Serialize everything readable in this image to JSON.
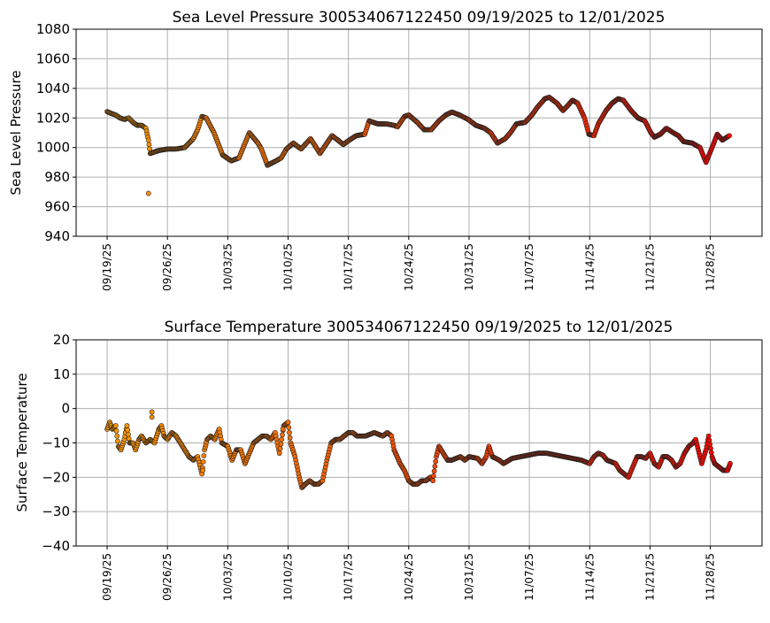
{
  "chart_data": [
    {
      "type": "scatter",
      "title": "Sea Level Pressure 300534067122450  09/19/2025 to 12/01/2025",
      "xlabel": "",
      "ylabel": "Sea Level Pressure",
      "x_unit": "days since 09/19/25",
      "xlim": [
        -3.6,
        76
      ],
      "ylim": [
        940,
        1080
      ],
      "yticks": [
        940,
        960,
        980,
        1000,
        1020,
        1040,
        1060,
        1080
      ],
      "xticks": [
        0,
        7,
        14,
        21,
        28,
        35,
        42,
        49,
        56,
        63,
        70
      ],
      "xtick_labels": [
        "09/19/25",
        "09/26/25",
        "10/03/25",
        "10/10/25",
        "10/17/25",
        "10/24/25",
        "10/31/25",
        "11/07/25",
        "11/14/25",
        "11/21/25",
        "11/28/25"
      ],
      "grid": true,
      "color_start": "#ff9a00",
      "color_end": "#ff0000",
      "outliers": [
        [
          4.8,
          969
        ]
      ],
      "points": [
        [
          0,
          1024.3
        ],
        [
          0.5,
          1023
        ],
        [
          1,
          1022
        ],
        [
          1.5,
          1020
        ],
        [
          2,
          1019
        ],
        [
          2.5,
          1020
        ],
        [
          3,
          1017
        ],
        [
          3.5,
          1015
        ],
        [
          4,
          1015
        ],
        [
          4.5,
          1013
        ],
        [
          4.8,
          1005
        ],
        [
          5,
          996
        ],
        [
          6,
          998
        ],
        [
          7,
          999
        ],
        [
          8,
          999
        ],
        [
          9,
          1000
        ],
        [
          10,
          1006
        ],
        [
          10.5,
          1012
        ],
        [
          11,
          1021
        ],
        [
          11.5,
          1020
        ],
        [
          12.4,
          1010
        ],
        [
          13.4,
          995
        ],
        [
          14.4,
          991
        ],
        [
          15.3,
          993
        ],
        [
          16.5,
          1010
        ],
        [
          17.5,
          1003
        ],
        [
          17.9,
          999
        ],
        [
          18.6,
          988
        ],
        [
          19.6,
          991
        ],
        [
          20.2,
          993
        ],
        [
          20.8,
          999
        ],
        [
          21.6,
          1003
        ],
        [
          22.5,
          999
        ],
        [
          23.6,
          1006
        ],
        [
          24.7,
          996
        ],
        [
          25.5,
          1003
        ],
        [
          26.1,
          1008
        ],
        [
          27.0,
          1004
        ],
        [
          27.4,
          1002
        ],
        [
          28.1,
          1005
        ],
        [
          28.9,
          1008
        ],
        [
          29.9,
          1009
        ],
        [
          30.4,
          1018
        ],
        [
          31.4,
          1016
        ],
        [
          32.4,
          1016
        ],
        [
          33.3,
          1015
        ],
        [
          33.7,
          1014
        ],
        [
          34.5,
          1021
        ],
        [
          35.0,
          1022
        ],
        [
          36.0,
          1017
        ],
        [
          36.8,
          1012
        ],
        [
          37.6,
          1012
        ],
        [
          38.5,
          1018
        ],
        [
          39.3,
          1022
        ],
        [
          40.0,
          1024
        ],
        [
          40.9,
          1022
        ],
        [
          41.9,
          1019
        ],
        [
          42.8,
          1015
        ],
        [
          43.8,
          1013
        ],
        [
          44.5,
          1010
        ],
        [
          45.3,
          1003
        ],
        [
          46.2,
          1006
        ],
        [
          46.8,
          1010
        ],
        [
          47.5,
          1016
        ],
        [
          48.5,
          1017
        ],
        [
          49.3,
          1022
        ],
        [
          49.9,
          1027
        ],
        [
          50.8,
          1033
        ],
        [
          51.3,
          1034
        ],
        [
          52.2,
          1030
        ],
        [
          52.9,
          1025
        ],
        [
          53.4,
          1028
        ],
        [
          54.0,
          1032
        ],
        [
          54.6,
          1030
        ],
        [
          55.4,
          1020
        ],
        [
          55.9,
          1009
        ],
        [
          56.5,
          1008
        ],
        [
          57.0,
          1016
        ],
        [
          57.9,
          1025
        ],
        [
          58.6,
          1030
        ],
        [
          59.3,
          1033
        ],
        [
          59.9,
          1032
        ],
        [
          60.8,
          1025
        ],
        [
          61.6,
          1020
        ],
        [
          62.4,
          1018
        ],
        [
          63.1,
          1010
        ],
        [
          63.5,
          1007
        ],
        [
          64.2,
          1009
        ],
        [
          64.9,
          1013
        ],
        [
          65.7,
          1010
        ],
        [
          66.3,
          1008
        ],
        [
          66.9,
          1004
        ],
        [
          67.9,
          1003
        ],
        [
          68.8,
          1000
        ],
        [
          69.5,
          990
        ],
        [
          70.2,
          1000
        ],
        [
          70.8,
          1009
        ],
        [
          71.4,
          1005
        ],
        [
          72.2,
          1008
        ]
      ]
    },
    {
      "type": "scatter",
      "title": "Surface Temperature 300534067122450  09/19/2025 to 12/01/2025",
      "xlabel": "",
      "ylabel": "Surface Temperature",
      "x_unit": "days since 09/19/25",
      "xlim": [
        -3.6,
        76
      ],
      "ylim": [
        -40,
        20
      ],
      "yticks": [
        -40,
        -30,
        -20,
        -10,
        0,
        10,
        20
      ],
      "ytick_labels": [
        "−40",
        "−30",
        "−20",
        "−10",
        "0",
        "10",
        "20"
      ],
      "xticks": [
        0,
        7,
        14,
        21,
        28,
        35,
        42,
        49,
        56,
        63,
        70
      ],
      "xtick_labels": [
        "09/19/25",
        "09/26/25",
        "10/03/25",
        "10/10/25",
        "10/17/25",
        "10/24/25",
        "10/31/25",
        "11/07/25",
        "11/14/25",
        "11/21/25",
        "11/28/25"
      ],
      "grid": true,
      "color_start": "#ff9a00",
      "color_end": "#ff0000",
      "outliers": [
        [
          5.2,
          -1
        ],
        [
          5.2,
          -2.5
        ],
        [
          20.4,
          -6
        ],
        [
          11.1,
          -18
        ]
      ],
      "points": [
        [
          0,
          -6
        ],
        [
          0.3,
          -4
        ],
        [
          0.6,
          -6
        ],
        [
          1,
          -5
        ],
        [
          1.3,
          -11
        ],
        [
          1.6,
          -12
        ],
        [
          2,
          -9
        ],
        [
          2.3,
          -5
        ],
        [
          2.6,
          -10
        ],
        [
          3,
          -10
        ],
        [
          3.3,
          -12
        ],
        [
          3.7,
          -9
        ],
        [
          4,
          -8
        ],
        [
          4.5,
          -10
        ],
        [
          5,
          -9
        ],
        [
          5.5,
          -10
        ],
        [
          6,
          -6
        ],
        [
          6.3,
          -5
        ],
        [
          6.6,
          -8
        ],
        [
          7,
          -9
        ],
        [
          7.5,
          -7
        ],
        [
          8,
          -8
        ],
        [
          8.5,
          -10
        ],
        [
          9,
          -12
        ],
        [
          9.5,
          -14
        ],
        [
          10,
          -15
        ],
        [
          10.5,
          -14
        ],
        [
          11,
          -19
        ],
        [
          11.3,
          -12
        ],
        [
          11.6,
          -9
        ],
        [
          12,
          -8
        ],
        [
          12.5,
          -9
        ],
        [
          13,
          -6
        ],
        [
          13.3,
          -10
        ],
        [
          14,
          -11
        ],
        [
          14.5,
          -15
        ],
        [
          15,
          -12
        ],
        [
          15.5,
          -12
        ],
        [
          16,
          -16
        ],
        [
          16.5,
          -13
        ],
        [
          17,
          -10
        ],
        [
          17.5,
          -9
        ],
        [
          18,
          -8
        ],
        [
          18.5,
          -8
        ],
        [
          19,
          -9
        ],
        [
          19.5,
          -7
        ],
        [
          20,
          -13
        ],
        [
          20.5,
          -5
        ],
        [
          21,
          -4
        ],
        [
          21.3,
          -10
        ],
        [
          21.8,
          -14
        ],
        [
          22.3,
          -20
        ],
        [
          22.6,
          -23
        ],
        [
          23,
          -22
        ],
        [
          23.5,
          -21
        ],
        [
          24,
          -22
        ],
        [
          24.5,
          -22
        ],
        [
          25,
          -21
        ],
        [
          25.5,
          -15
        ],
        [
          26,
          -10
        ],
        [
          26.5,
          -9
        ],
        [
          27,
          -9
        ],
        [
          27.5,
          -8
        ],
        [
          28,
          -7
        ],
        [
          28.5,
          -7
        ],
        [
          29,
          -8
        ],
        [
          30,
          -8
        ],
        [
          31,
          -7
        ],
        [
          32,
          -8
        ],
        [
          32.5,
          -7
        ],
        [
          33,
          -8
        ],
        [
          33.3,
          -12
        ],
        [
          34,
          -16
        ],
        [
          34.5,
          -18
        ],
        [
          35,
          -21
        ],
        [
          35.5,
          -22
        ],
        [
          36,
          -22
        ],
        [
          36.5,
          -21
        ],
        [
          37,
          -21
        ],
        [
          37.5,
          -20
        ],
        [
          37.8,
          -21
        ],
        [
          38.2,
          -14
        ],
        [
          38.5,
          -11
        ],
        [
          39,
          -13
        ],
        [
          39.5,
          -15
        ],
        [
          40,
          -15
        ],
        [
          41,
          -14
        ],
        [
          41.5,
          -15
        ],
        [
          42,
          -14
        ],
        [
          43,
          -14.5
        ],
        [
          43.5,
          -16
        ],
        [
          44,
          -14
        ],
        [
          44.3,
          -11
        ],
        [
          44.7,
          -14
        ],
        [
          45.5,
          -15
        ],
        [
          46,
          -16
        ],
        [
          47,
          -14.5
        ],
        [
          48,
          -14
        ],
        [
          49,
          -13.5
        ],
        [
          50,
          -13
        ],
        [
          51,
          -13
        ],
        [
          52,
          -13.5
        ],
        [
          53,
          -14
        ],
        [
          54,
          -14.5
        ],
        [
          55,
          -15
        ],
        [
          55.5,
          -15.5
        ],
        [
          56,
          -16
        ],
        [
          56.5,
          -14
        ],
        [
          57,
          -13
        ],
        [
          57.5,
          -13.5
        ],
        [
          58,
          -15
        ],
        [
          59,
          -16
        ],
        [
          59.5,
          -18
        ],
        [
          60,
          -19
        ],
        [
          60.5,
          -20
        ],
        [
          61,
          -17
        ],
        [
          61.5,
          -14
        ],
        [
          62,
          -14
        ],
        [
          62.5,
          -14.5
        ],
        [
          63,
          -13
        ],
        [
          63.5,
          -16
        ],
        [
          64,
          -17
        ],
        [
          64.5,
          -14
        ],
        [
          65,
          -14
        ],
        [
          65.5,
          -15
        ],
        [
          66,
          -17
        ],
        [
          66.5,
          -16
        ],
        [
          67,
          -13
        ],
        [
          67.5,
          -11
        ],
        [
          68,
          -10
        ],
        [
          68.3,
          -9
        ],
        [
          68.7,
          -13
        ],
        [
          69,
          -16
        ],
        [
          69.5,
          -12
        ],
        [
          69.8,
          -8
        ],
        [
          70.2,
          -14
        ],
        [
          70.5,
          -16
        ],
        [
          71,
          -17
        ],
        [
          71.5,
          -18
        ],
        [
          72,
          -18
        ],
        [
          72.3,
          -16
        ]
      ]
    }
  ]
}
